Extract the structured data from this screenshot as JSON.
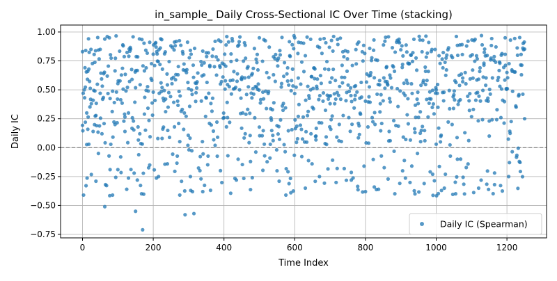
{
  "chart_data": {
    "type": "scatter",
    "title": "in_sample_ Daily Cross-Sectional IC Over Time (stacking)",
    "xlabel": "Time Index",
    "ylabel": "Daily IC",
    "xlim": [
      -62,
      1312
    ],
    "ylim": [
      -0.78,
      1.06
    ],
    "x_ticks": [
      0,
      200,
      400,
      600,
      800,
      1000,
      1200
    ],
    "x_tick_labels": [
      "0",
      "200",
      "400",
      "600",
      "800",
      "1000",
      "1200"
    ],
    "y_ticks": [
      -0.75,
      -0.5,
      -0.25,
      0.0,
      0.25,
      0.5,
      0.75,
      1.0
    ],
    "y_tick_labels": [
      "−0.75",
      "−0.50",
      "−0.25",
      "0.00",
      "0.25",
      "0.50",
      "0.75",
      "1.00"
    ],
    "grid": true,
    "legend_position": "bottom-right",
    "reference_line": {
      "y": 0.0,
      "style": "dashed",
      "color": "#808080"
    },
    "series": [
      {
        "name": "Daily IC (Spearman)",
        "color": "#1f77b4",
        "n_points": 1250,
        "points_note": "Daily Spearman IC values, approx. one per time index 0-1250; values range about -0.71 to 0.97, most between 0.2 and 0.95.",
        "sample_points": [
          [
            0,
            0.83
          ],
          [
            2,
            0.47
          ],
          [
            5,
            0.5
          ],
          [
            8,
            0.22
          ],
          [
            12,
            0.3
          ],
          [
            15,
            0.66
          ],
          [
            18,
            0.03
          ],
          [
            25,
            0.38
          ],
          [
            30,
            0.14
          ],
          [
            35,
            0.49
          ],
          [
            38,
            -0.29
          ],
          [
            45,
            -0.05
          ],
          [
            50,
            0.85
          ],
          [
            55,
            0.12
          ],
          [
            60,
            0.64
          ],
          [
            63,
            -0.51
          ],
          [
            70,
            0.96
          ],
          [
            78,
            -0.19
          ],
          [
            85,
            -0.41
          ],
          [
            92,
            0.2
          ],
          [
            100,
            -0.19
          ],
          [
            108,
            -0.08
          ],
          [
            115,
            0.88
          ],
          [
            120,
            0.14
          ],
          [
            125,
            -0.36
          ],
          [
            130,
            0.3
          ],
          [
            140,
            0.59
          ],
          [
            150,
            -0.55
          ],
          [
            155,
            -0.28
          ],
          [
            162,
            0.12
          ],
          [
            170,
            -0.71
          ],
          [
            175,
            0.29
          ],
          [
            180,
            0.69
          ],
          [
            190,
            -0.15
          ],
          [
            200,
            0.48
          ],
          [
            210,
            0.83
          ],
          [
            215,
            -0.25
          ],
          [
            225,
            0.08
          ],
          [
            235,
            0.42
          ],
          [
            240,
            -0.14
          ],
          [
            250,
            0.88
          ],
          [
            260,
            0.18
          ],
          [
            270,
            0.63
          ],
          [
            275,
            -0.41
          ],
          [
            282,
            0.33
          ],
          [
            290,
            -0.58
          ],
          [
            298,
            0.02
          ],
          [
            305,
            -0.25
          ],
          [
            315,
            -0.57
          ],
          [
            320,
            0.4
          ],
          [
            335,
            -0.27
          ],
          [
            340,
            -0.38
          ],
          [
            350,
            0.82
          ],
          [
            360,
            0.7
          ],
          [
            375,
            0.02
          ],
          [
            390,
            0.55
          ],
          [
            400,
            0.72
          ],
          [
            410,
            0.26
          ],
          [
            420,
            0.81
          ],
          [
            440,
            -0.1
          ],
          [
            450,
            0.59
          ],
          [
            460,
            0.12
          ],
          [
            475,
            -0.12
          ],
          [
            480,
            -0.26
          ],
          [
            500,
            0.95
          ],
          [
            510,
            0.48
          ],
          [
            530,
            -0.09
          ],
          [
            540,
            0.63
          ],
          [
            550,
            -0.2
          ],
          [
            560,
            0.24
          ],
          [
            580,
            0.69
          ],
          [
            600,
            0.95
          ],
          [
            610,
            0.27
          ],
          [
            620,
            0.74
          ],
          [
            630,
            -0.35
          ],
          [
            645,
            0.5
          ],
          [
            660,
            0.1
          ],
          [
            670,
            -0.25
          ],
          [
            685,
            0.68
          ],
          [
            700,
            0.38
          ],
          [
            720,
            -0.18
          ],
          [
            735,
            0.56
          ],
          [
            750,
            0.83
          ],
          [
            760,
            -0.28
          ],
          [
            780,
            0.21
          ],
          [
            800,
            -0.38
          ],
          [
            810,
            0.44
          ],
          [
            825,
            -0.34
          ],
          [
            840,
            0.58
          ],
          [
            855,
            0.92
          ],
          [
            870,
            0.06
          ],
          [
            890,
            0.51
          ],
          [
            905,
            -0.2
          ],
          [
            920,
            0.73
          ],
          [
            940,
            -0.4
          ],
          [
            955,
            0.31
          ],
          [
            970,
            0.66
          ],
          [
            990,
            -0.23
          ],
          [
            1000,
            0.5
          ],
          [
            1015,
            -0.37
          ],
          [
            1030,
            0.8
          ],
          [
            1045,
            0.2
          ],
          [
            1060,
            -0.1
          ],
          [
            1075,
            0.57
          ],
          [
            1090,
            0.92
          ],
          [
            1105,
            0.33
          ],
          [
            1120,
            -0.35
          ],
          [
            1135,
            0.73
          ],
          [
            1150,
            0.1
          ],
          [
            1165,
            -0.32
          ],
          [
            1180,
            0.53
          ],
          [
            1195,
            0.95
          ],
          [
            1205,
            -0.25
          ],
          [
            1215,
            0.66
          ],
          [
            1225,
            0.36
          ],
          [
            1235,
            -0.12
          ],
          [
            1245,
            0.86
          ],
          [
            1250,
            0.25
          ]
        ]
      }
    ]
  }
}
